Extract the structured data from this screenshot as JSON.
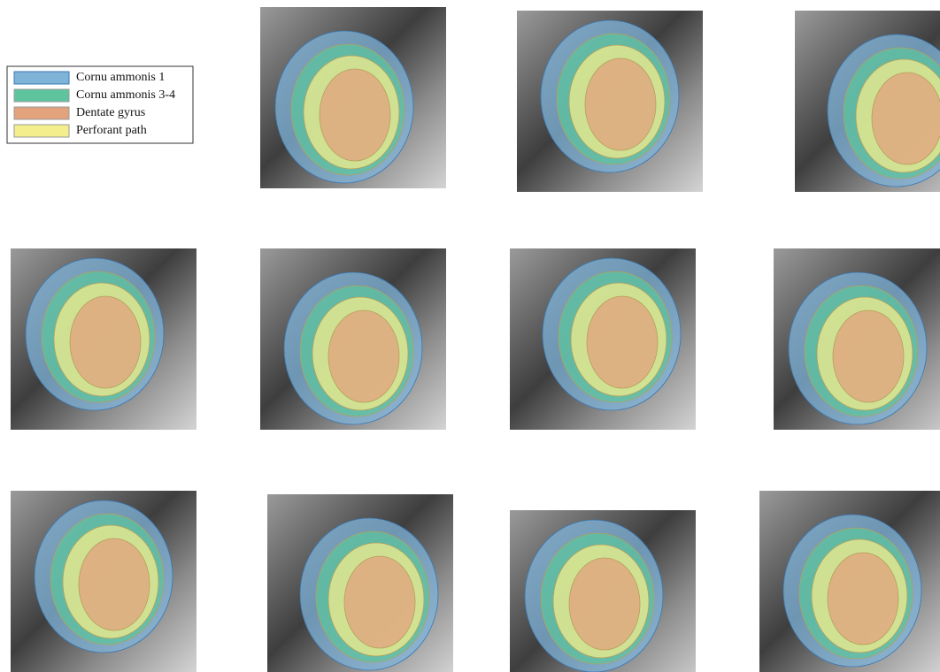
{
  "legend": {
    "items": [
      {
        "name": "Cornu ammonis 1",
        "color": "#7fb3d8"
      },
      {
        "name": "Cornu ammonis 3-4",
        "color": "#5ec49e"
      },
      {
        "name": "Dentate gyrus",
        "color": "#e2a27c"
      },
      {
        "name": "Perforant path",
        "color": "#f4ee8c"
      }
    ]
  }
}
